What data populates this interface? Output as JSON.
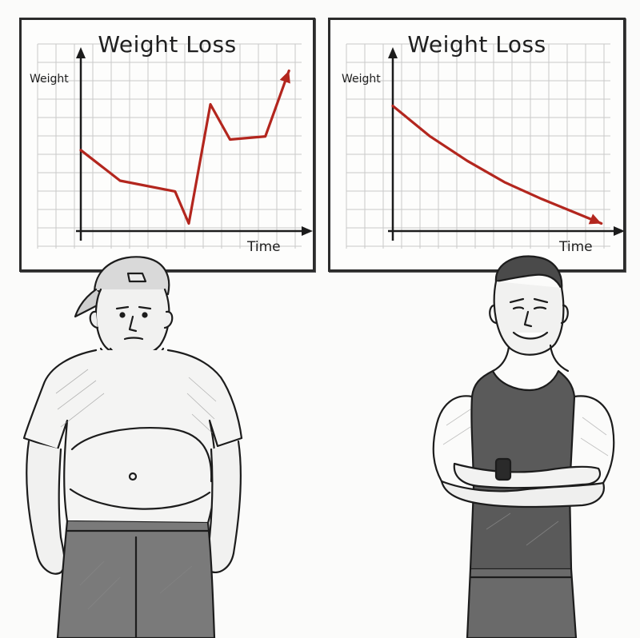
{
  "chart_data": [
    {
      "type": "line",
      "title": "Weight Loss",
      "xlabel": "Time",
      "ylabel": "Weight",
      "grid": true,
      "x": [
        0,
        1,
        2.4,
        2.75,
        3.3,
        3.8,
        4.7,
        5.3
      ],
      "y": [
        5.3,
        3.3,
        2.6,
        0.5,
        8.3,
        6.0,
        6.2,
        10.5
      ],
      "xlim": [
        0,
        5.5
      ],
      "ylim": [
        0,
        11
      ],
      "line_color": "#b3261e",
      "end_arrow": true
    },
    {
      "type": "line",
      "title": "Weight Loss",
      "xlabel": "Time",
      "ylabel": "Weight",
      "grid": true,
      "x": [
        0,
        1,
        2,
        3,
        4,
        5,
        5.6
      ],
      "y": [
        8.2,
        6.2,
        4.6,
        3.2,
        2.1,
        1.1,
        0.5
      ],
      "xlim": [
        0,
        5.8
      ],
      "ylim": [
        0,
        11
      ],
      "line_color": "#b3261e",
      "end_arrow": true
    }
  ],
  "figures": {
    "left": "overweight-man-in-backwards-cap",
    "right": "muscular-man-arms-crossed-in-tank-top"
  }
}
